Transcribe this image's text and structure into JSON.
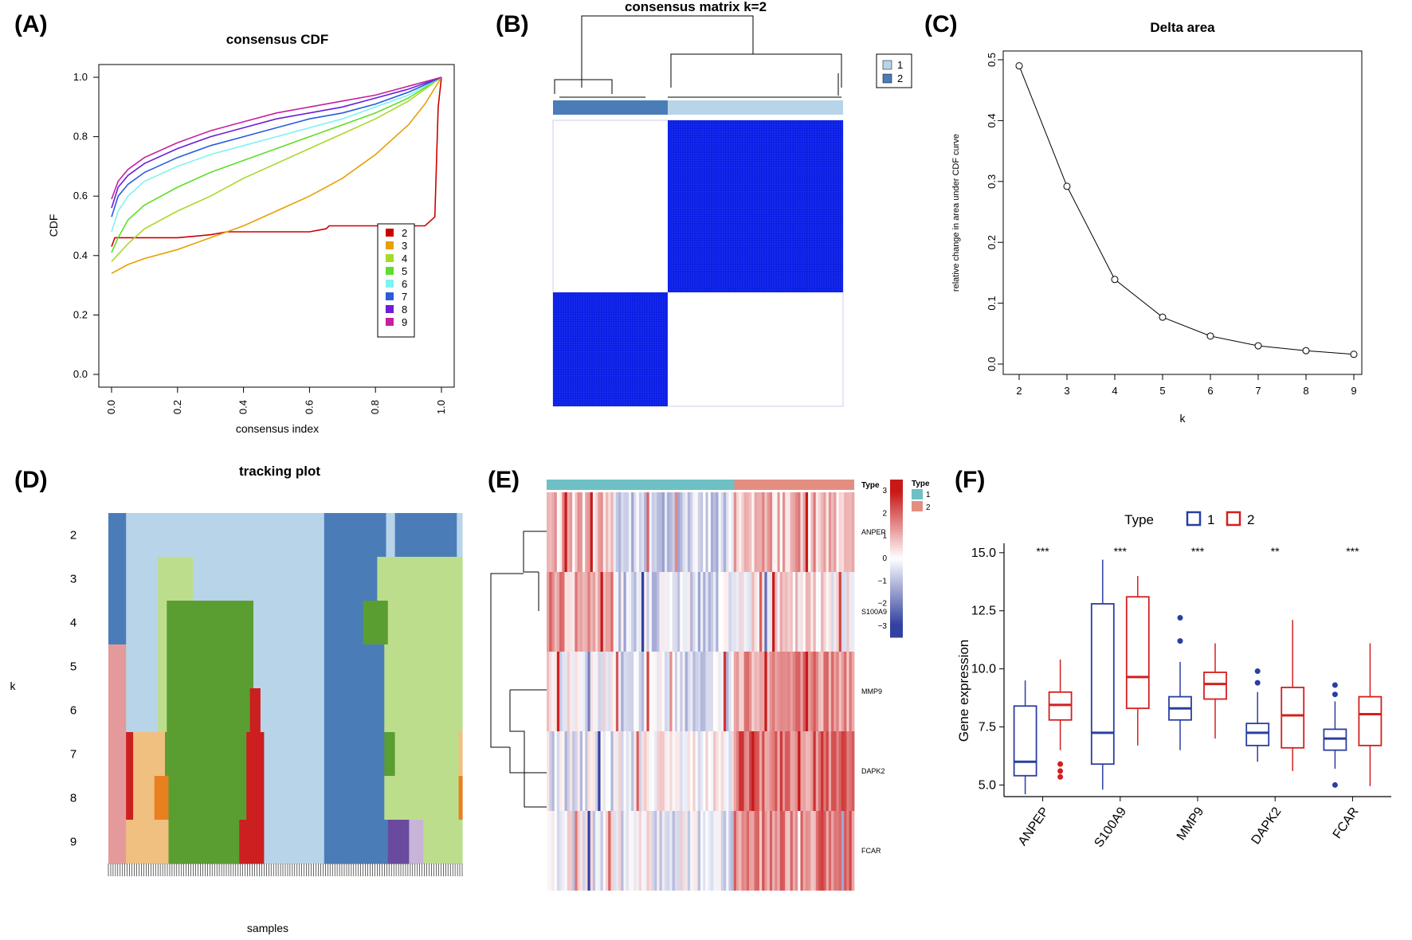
{
  "panels": {
    "A": {
      "label": "(A)"
    },
    "B": {
      "label": "(B)"
    },
    "C": {
      "label": "(C)"
    },
    "D": {
      "label": "(D)"
    },
    "E": {
      "label": "(E)"
    },
    "F": {
      "label": "(F)"
    }
  },
  "colors": {
    "k2": "#cc0000",
    "k3": "#e6a000",
    "k4": "#a8d82a",
    "k5": "#5fdd2a",
    "k6": "#7ff2f2",
    "k7": "#2a5bdd",
    "k8": "#6a1fd6",
    "k9": "#c71fa0",
    "cluster_light": "#b8d4e8",
    "cluster_dark": "#4a7db8",
    "consensus_blue": "#0a1ee6",
    "track_lightgreen": "#bcde8c",
    "track_green": "#5a9e32",
    "track_pink": "#e49a9a",
    "track_orange": "#f0c080",
    "track_red": "#cc1f1f",
    "track_darkorange": "#e8801f",
    "track_purple": "#6a4a9e",
    "track_lavender": "#c8b4d8",
    "heat_type1": "#6ec0c4",
    "heat_type2": "#e48e82",
    "box_group1": "#2a3fa0",
    "box_group2": "#d41f1f"
  },
  "chart_data": [
    {
      "panel": "A",
      "type": "line",
      "title": "consensus CDF",
      "xlabel": "consensus index",
      "ylabel": "CDF",
      "xlim": [
        0,
        1
      ],
      "ylim": [
        0,
        1
      ],
      "xticks": [
        "0.0",
        "0.2",
        "0.4",
        "0.6",
        "0.8",
        "1.0"
      ],
      "yticks": [
        "0.0",
        "0.2",
        "0.4",
        "0.6",
        "0.8",
        "1.0"
      ],
      "legend": [
        "2",
        "3",
        "4",
        "5",
        "6",
        "7",
        "8",
        "9"
      ],
      "series": [
        {
          "name": "2",
          "x": [
            0,
            0.01,
            0.05,
            0.2,
            0.3,
            0.35,
            0.6,
            0.65,
            0.66,
            0.95,
            0.98,
            0.99,
            1.0
          ],
          "y": [
            0.43,
            0.46,
            0.46,
            0.46,
            0.47,
            0.48,
            0.48,
            0.49,
            0.5,
            0.5,
            0.53,
            0.9,
            1.0
          ]
        },
        {
          "name": "3",
          "x": [
            0,
            0.05,
            0.1,
            0.2,
            0.3,
            0.4,
            0.5,
            0.6,
            0.7,
            0.8,
            0.9,
            0.95,
            1.0
          ],
          "y": [
            0.34,
            0.37,
            0.39,
            0.42,
            0.46,
            0.5,
            0.55,
            0.6,
            0.66,
            0.74,
            0.84,
            0.91,
            1.0
          ]
        },
        {
          "name": "4",
          "x": [
            0,
            0.05,
            0.1,
            0.2,
            0.3,
            0.4,
            0.5,
            0.6,
            0.7,
            0.8,
            0.9,
            1.0
          ],
          "y": [
            0.38,
            0.44,
            0.49,
            0.55,
            0.6,
            0.66,
            0.71,
            0.76,
            0.81,
            0.86,
            0.92,
            1.0
          ]
        },
        {
          "name": "5",
          "x": [
            0,
            0.02,
            0.05,
            0.1,
            0.2,
            0.3,
            0.4,
            0.5,
            0.6,
            0.7,
            0.8,
            0.9,
            1.0
          ],
          "y": [
            0.41,
            0.46,
            0.52,
            0.57,
            0.63,
            0.68,
            0.72,
            0.76,
            0.8,
            0.84,
            0.88,
            0.93,
            1.0
          ]
        },
        {
          "name": "6",
          "x": [
            0,
            0.02,
            0.05,
            0.1,
            0.2,
            0.3,
            0.4,
            0.5,
            0.6,
            0.7,
            0.8,
            0.9,
            1.0
          ],
          "y": [
            0.48,
            0.55,
            0.6,
            0.65,
            0.7,
            0.74,
            0.77,
            0.8,
            0.83,
            0.86,
            0.9,
            0.94,
            1.0
          ]
        },
        {
          "name": "7",
          "x": [
            0,
            0.02,
            0.05,
            0.1,
            0.2,
            0.3,
            0.4,
            0.5,
            0.6,
            0.7,
            0.8,
            0.9,
            1.0
          ],
          "y": [
            0.53,
            0.6,
            0.64,
            0.68,
            0.73,
            0.77,
            0.8,
            0.83,
            0.86,
            0.88,
            0.91,
            0.95,
            1.0
          ]
        },
        {
          "name": "8",
          "x": [
            0,
            0.02,
            0.05,
            0.1,
            0.2,
            0.3,
            0.4,
            0.5,
            0.6,
            0.7,
            0.8,
            0.9,
            1.0
          ],
          "y": [
            0.56,
            0.63,
            0.67,
            0.71,
            0.76,
            0.8,
            0.83,
            0.86,
            0.88,
            0.9,
            0.93,
            0.96,
            1.0
          ]
        },
        {
          "name": "9",
          "x": [
            0,
            0.02,
            0.05,
            0.1,
            0.2,
            0.3,
            0.4,
            0.5,
            0.6,
            0.7,
            0.8,
            0.9,
            1.0
          ],
          "y": [
            0.59,
            0.65,
            0.69,
            0.73,
            0.78,
            0.82,
            0.85,
            0.88,
            0.9,
            0.92,
            0.94,
            0.97,
            1.0
          ]
        }
      ]
    },
    {
      "panel": "B",
      "type": "heatmap",
      "title": "consensus matrix k=2",
      "legend": [
        "1",
        "2"
      ],
      "clusters": [
        {
          "name": "2",
          "fraction": 0.4
        },
        {
          "name": "1",
          "fraction": 0.6
        }
      ]
    },
    {
      "panel": "C",
      "type": "line",
      "title": "Delta area",
      "xlabel": "k",
      "ylabel": "relative change in area under CDF curve",
      "x": [
        2,
        3,
        4,
        5,
        6,
        7,
        8,
        9
      ],
      "y": [
        0.49,
        0.292,
        0.139,
        0.077,
        0.046,
        0.03,
        0.022,
        0.016
      ],
      "xlim": [
        2,
        9
      ],
      "ylim": [
        0,
        0.5
      ],
      "xticks": [
        "2",
        "3",
        "4",
        "5",
        "6",
        "7",
        "8",
        "9"
      ],
      "yticks": [
        "0.0",
        "0.1",
        "0.2",
        "0.3",
        "0.4",
        "0.5"
      ]
    },
    {
      "panel": "D",
      "type": "heatmap",
      "title": "tracking plot",
      "xlabel": "samples",
      "ylabel": "k",
      "rows": [
        "2",
        "3",
        "4",
        "5",
        "6",
        "7",
        "8",
        "9"
      ],
      "segments": {
        "2": [
          [
            0,
            0.05,
            "cluster_dark"
          ],
          [
            0.05,
            0.61,
            "cluster_light"
          ],
          [
            0.61,
            0.785,
            "cluster_dark"
          ],
          [
            0.785,
            0.81,
            "cluster_light"
          ],
          [
            0.81,
            0.985,
            "cluster_dark"
          ],
          [
            0.985,
            1,
            "cluster_light"
          ]
        ],
        "3": [
          [
            0,
            0.05,
            "cluster_dark"
          ],
          [
            0.05,
            0.14,
            "cluster_light"
          ],
          [
            0.14,
            0.24,
            "track_lightgreen"
          ],
          [
            0.24,
            0.61,
            "cluster_light"
          ],
          [
            0.61,
            0.76,
            "cluster_dark"
          ],
          [
            0.76,
            1,
            "track_lightgreen"
          ]
        ],
        "4": [
          [
            0,
            0.05,
            "cluster_dark"
          ],
          [
            0.05,
            0.14,
            "cluster_light"
          ],
          [
            0.14,
            0.165,
            "track_lightgreen"
          ],
          [
            0.165,
            0.41,
            "track_green"
          ],
          [
            0.41,
            0.61,
            "cluster_light"
          ],
          [
            0.61,
            0.72,
            "cluster_dark"
          ],
          [
            0.72,
            0.79,
            "track_green"
          ],
          [
            0.79,
            1,
            "track_lightgreen"
          ]
        ],
        "5": [
          [
            0,
            0.05,
            "track_pink"
          ],
          [
            0.05,
            0.14,
            "cluster_light"
          ],
          [
            0.14,
            0.165,
            "track_lightgreen"
          ],
          [
            0.165,
            0.41,
            "track_green"
          ],
          [
            0.41,
            0.61,
            "cluster_light"
          ],
          [
            0.61,
            0.78,
            "cluster_dark"
          ],
          [
            0.78,
            1,
            "track_lightgreen"
          ]
        ],
        "6": [
          [
            0,
            0.05,
            "track_pink"
          ],
          [
            0.05,
            0.14,
            "cluster_light"
          ],
          [
            0.14,
            0.165,
            "track_lightgreen"
          ],
          [
            0.165,
            0.4,
            "track_green"
          ],
          [
            0.4,
            0.43,
            "track_red"
          ],
          [
            0.43,
            0.61,
            "cluster_light"
          ],
          [
            0.61,
            0.78,
            "cluster_dark"
          ],
          [
            0.78,
            1,
            "track_lightgreen"
          ]
        ],
        "7": [
          [
            0,
            0.05,
            "track_pink"
          ],
          [
            0.05,
            0.07,
            "track_red"
          ],
          [
            0.07,
            0.16,
            "track_orange"
          ],
          [
            0.16,
            0.39,
            "track_green"
          ],
          [
            0.39,
            0.44,
            "track_red"
          ],
          [
            0.44,
            0.61,
            "cluster_light"
          ],
          [
            0.61,
            0.78,
            "cluster_dark"
          ],
          [
            0.78,
            0.81,
            "track_green"
          ],
          [
            0.81,
            0.99,
            "track_lightgreen"
          ],
          [
            0.99,
            1,
            "track_orange"
          ]
        ],
        "8": [
          [
            0,
            0.05,
            "track_pink"
          ],
          [
            0.05,
            0.07,
            "track_red"
          ],
          [
            0.07,
            0.13,
            "track_orange"
          ],
          [
            0.13,
            0.17,
            "track_darkorange"
          ],
          [
            0.17,
            0.39,
            "track_green"
          ],
          [
            0.39,
            0.44,
            "track_red"
          ],
          [
            0.44,
            0.61,
            "cluster_light"
          ],
          [
            0.61,
            0.78,
            "cluster_dark"
          ],
          [
            0.78,
            0.99,
            "track_lightgreen"
          ],
          [
            0.99,
            1,
            "track_darkorange"
          ]
        ],
        "9": [
          [
            0,
            0.05,
            "track_pink"
          ],
          [
            0.05,
            0.17,
            "track_orange"
          ],
          [
            0.17,
            0.37,
            "track_green"
          ],
          [
            0.37,
            0.44,
            "track_red"
          ],
          [
            0.44,
            0.61,
            "cluster_light"
          ],
          [
            0.61,
            0.79,
            "cluster_dark"
          ],
          [
            0.79,
            0.85,
            "track_purple"
          ],
          [
            0.85,
            0.89,
            "track_lavender"
          ],
          [
            0.89,
            1,
            "track_lightgreen"
          ]
        ]
      }
    },
    {
      "panel": "E",
      "type": "heatmap",
      "genes": [
        "ANPEP",
        "S100A9",
        "MMP9",
        "DAPK2",
        "FCAR"
      ],
      "annotation_label": "Type",
      "legend_title": "Type",
      "legend": [
        "1",
        "2"
      ],
      "type1_fraction": 0.61,
      "colorbar_ticks": [
        "3",
        "2",
        "1",
        "0",
        "−1",
        "−2",
        "−3"
      ],
      "colorbar_range": [
        -3.5,
        3.5
      ],
      "gene_bias": [
        [
          0.8,
          -0.7,
          0.9
        ],
        [
          1.2,
          -0.6,
          0.3
        ],
        [
          0.0,
          -0.4,
          1.4
        ],
        [
          -0.4,
          -0.1,
          1.8
        ],
        [
          -0.2,
          -0.2,
          1.6
        ]
      ]
    },
    {
      "panel": "F",
      "type": "box",
      "xlabel": "",
      "ylabel": "Gene expression",
      "legend_title": "Type",
      "legend": [
        "1",
        "2"
      ],
      "ylim": [
        4.5,
        15.2
      ],
      "yticks": [
        "5.0",
        "7.5",
        "10.0",
        "12.5",
        "15.0"
      ],
      "categories": [
        "ANPEP",
        "S100A9",
        "MMP9",
        "DAPK2",
        "FCAR"
      ],
      "significance": [
        "***",
        "***",
        "***",
        "**",
        "***"
      ],
      "series": [
        {
          "name": "1",
          "boxes": [
            {
              "min": 4.6,
              "q1": 5.4,
              "median": 6.0,
              "q3": 8.4,
              "max": 9.5,
              "outliers": []
            },
            {
              "min": 4.8,
              "q1": 5.9,
              "median": 7.25,
              "q3": 12.8,
              "max": 14.7,
              "outliers": []
            },
            {
              "min": 6.5,
              "q1": 7.8,
              "median": 8.3,
              "q3": 8.8,
              "max": 10.3,
              "outliers": [
                11.2,
                12.2
              ]
            },
            {
              "min": 6.0,
              "q1": 6.7,
              "median": 7.25,
              "q3": 7.65,
              "max": 9.0,
              "outliers": [
                9.4,
                9.9
              ]
            },
            {
              "min": 5.7,
              "q1": 6.5,
              "median": 7.0,
              "q3": 7.4,
              "max": 8.6,
              "outliers": [
                9.3,
                8.9,
                5.0
              ]
            }
          ]
        },
        {
          "name": "2",
          "boxes": [
            {
              "min": 6.5,
              "q1": 7.8,
              "median": 8.45,
              "q3": 9.0,
              "max": 10.4,
              "outliers": [
                5.9,
                5.6,
                5.35
              ]
            },
            {
              "min": 6.7,
              "q1": 8.3,
              "median": 9.65,
              "q3": 13.1,
              "max": 14.0,
              "outliers": []
            },
            {
              "min": 7.0,
              "q1": 8.7,
              "median": 9.35,
              "q3": 9.85,
              "max": 11.1,
              "outliers": []
            },
            {
              "min": 5.6,
              "q1": 6.6,
              "median": 8.0,
              "q3": 9.2,
              "max": 12.1,
              "outliers": []
            },
            {
              "min": 4.95,
              "q1": 6.7,
              "median": 8.05,
              "q3": 8.8,
              "max": 11.1,
              "outliers": []
            }
          ]
        }
      ]
    }
  ]
}
